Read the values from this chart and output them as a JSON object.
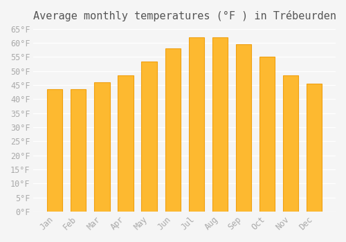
{
  "title": "Average monthly temperatures (°F ) in Trébeurden",
  "months": [
    "Jan",
    "Feb",
    "Mar",
    "Apr",
    "May",
    "Jun",
    "Jul",
    "Aug",
    "Sep",
    "Oct",
    "Nov",
    "Dec"
  ],
  "values": [
    43.5,
    43.5,
    46.0,
    48.5,
    53.5,
    58.0,
    62.0,
    62.0,
    59.5,
    55.0,
    48.5,
    45.5
  ],
  "bar_color_face": "#FDB930",
  "bar_color_edge": "#F0A010",
  "ylim": [
    0,
    65
  ],
  "ytick_step": 5,
  "background_color": "#f5f5f5",
  "grid_color": "#ffffff",
  "title_fontsize": 11,
  "tick_fontsize": 8.5,
  "tick_font_color": "#aaaaaa",
  "bar_width": 0.65
}
